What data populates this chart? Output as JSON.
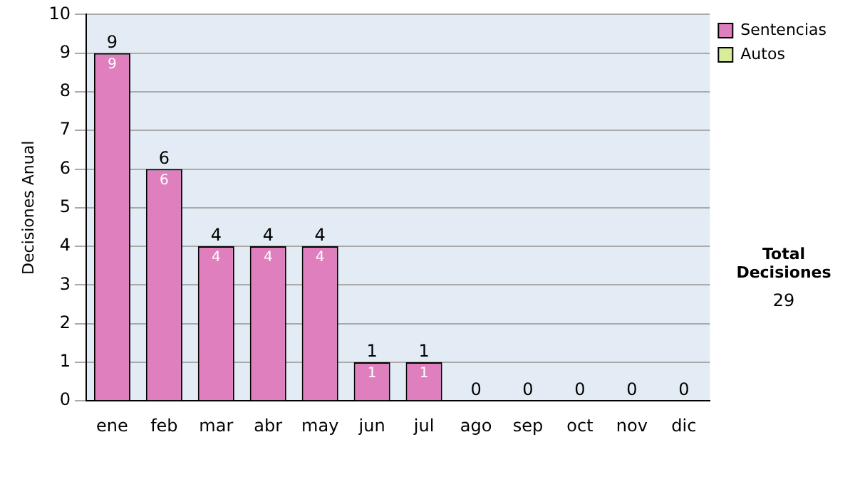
{
  "chart_data": {
    "type": "bar",
    "ylabel": "Decisiones Anual",
    "categories": [
      "ene",
      "feb",
      "mar",
      "abr",
      "may",
      "jun",
      "jul",
      "ago",
      "sep",
      "oct",
      "nov",
      "dic"
    ],
    "series": [
      {
        "name": "Sentencias",
        "color": "#e07fbe",
        "values": [
          9,
          6,
          4,
          4,
          4,
          1,
          1,
          0,
          0,
          0,
          0,
          0
        ],
        "value_labels": [
          "9",
          "6",
          "4",
          "4",
          "4",
          "1",
          "1",
          null,
          null,
          null,
          null,
          null
        ]
      },
      {
        "name": "Autos",
        "color": "#d8ec9c",
        "values": [
          0,
          0,
          0,
          0,
          0,
          0,
          0,
          0,
          0,
          0,
          0,
          0
        ]
      }
    ],
    "stacked": true,
    "totals": [
      "9",
      "6",
      "4",
      "4",
      "4",
      "1",
      "1",
      "0",
      "0",
      "0",
      "0",
      "0"
    ],
    "ylim": [
      0,
      10
    ],
    "yticks": [
      0,
      1,
      2,
      3,
      4,
      5,
      6,
      7,
      8,
      9,
      10
    ],
    "grid": "y",
    "legend": "right",
    "annotations": [
      "Total Decisiones",
      "29"
    ]
  }
}
